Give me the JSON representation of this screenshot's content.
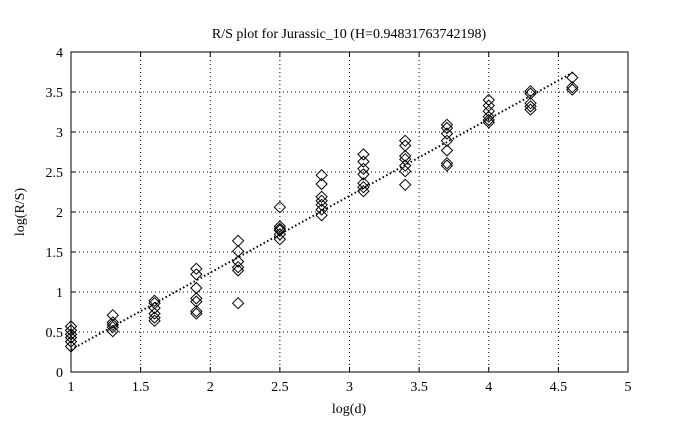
{
  "chart_data": {
    "type": "scatter",
    "title": "R/S plot for Jurassic_10 (H=0.94831763742198)",
    "xlabel": "log(d)",
    "ylabel": "log(R/S)",
    "xlim": [
      1,
      5
    ],
    "ylim": [
      0,
      4
    ],
    "x_ticks": [
      "1",
      "1.5",
      "2",
      "2.5",
      "3",
      "3.5",
      "4",
      "4.5",
      "5"
    ],
    "y_ticks": [
      "0",
      "0.5",
      "1",
      "1.5",
      "2",
      "2.5",
      "3",
      "3.5",
      "4"
    ],
    "grid": true,
    "grid_style": "dotted",
    "marker": "diamond",
    "series": [
      {
        "points": [
          [
            1.0,
            0.32
          ],
          [
            1.0,
            0.38
          ],
          [
            1.0,
            0.43
          ],
          [
            1.0,
            0.47
          ],
          [
            1.0,
            0.52
          ],
          [
            1.0,
            0.57
          ],
          [
            1.3,
            0.51
          ],
          [
            1.3,
            0.56
          ],
          [
            1.3,
            0.59
          ],
          [
            1.3,
            0.62
          ],
          [
            1.3,
            0.71
          ],
          [
            1.6,
            0.64
          ],
          [
            1.6,
            0.68
          ],
          [
            1.6,
            0.73
          ],
          [
            1.6,
            0.8
          ],
          [
            1.6,
            0.86
          ],
          [
            1.6,
            0.89
          ],
          [
            1.9,
            0.73
          ],
          [
            1.9,
            0.76
          ],
          [
            1.9,
            0.88
          ],
          [
            1.9,
            0.92
          ],
          [
            1.9,
            1.05
          ],
          [
            1.9,
            1.22
          ],
          [
            1.9,
            1.29
          ],
          [
            2.2,
            0.86
          ],
          [
            2.2,
            1.27
          ],
          [
            2.2,
            1.31
          ],
          [
            2.2,
            1.38
          ],
          [
            2.2,
            1.51
          ],
          [
            2.2,
            1.64
          ],
          [
            2.5,
            1.66
          ],
          [
            2.5,
            1.72
          ],
          [
            2.5,
            1.77
          ],
          [
            2.5,
            1.79
          ],
          [
            2.5,
            1.82
          ],
          [
            2.5,
            2.06
          ],
          [
            2.8,
            1.96
          ],
          [
            2.8,
            2.03
          ],
          [
            2.8,
            2.09
          ],
          [
            2.8,
            2.14
          ],
          [
            2.8,
            2.19
          ],
          [
            2.8,
            2.35
          ],
          [
            2.8,
            2.46
          ],
          [
            3.1,
            2.26
          ],
          [
            3.1,
            2.31
          ],
          [
            3.1,
            2.36
          ],
          [
            3.1,
            2.47
          ],
          [
            3.1,
            2.54
          ],
          [
            3.1,
            2.63
          ],
          [
            3.1,
            2.72
          ],
          [
            3.4,
            2.34
          ],
          [
            3.4,
            2.51
          ],
          [
            3.4,
            2.58
          ],
          [
            3.4,
            2.66
          ],
          [
            3.4,
            2.7
          ],
          [
            3.4,
            2.83
          ],
          [
            3.4,
            2.89
          ],
          [
            3.7,
            2.58
          ],
          [
            3.7,
            2.61
          ],
          [
            3.7,
            2.77
          ],
          [
            3.7,
            2.89
          ],
          [
            3.7,
            2.98
          ],
          [
            3.7,
            3.05
          ],
          [
            3.7,
            3.09
          ],
          [
            4.0,
            3.12
          ],
          [
            4.0,
            3.15
          ],
          [
            4.0,
            3.19
          ],
          [
            4.0,
            3.26
          ],
          [
            4.0,
            3.33
          ],
          [
            4.0,
            3.4
          ],
          [
            4.3,
            3.28
          ],
          [
            4.3,
            3.32
          ],
          [
            4.3,
            3.36
          ],
          [
            4.3,
            3.48
          ],
          [
            4.3,
            3.51
          ],
          [
            4.6,
            3.53
          ],
          [
            4.6,
            3.56
          ],
          [
            4.6,
            3.68
          ]
        ]
      }
    ],
    "fit_line": {
      "style": "dotted",
      "x": [
        1.0,
        4.6
      ],
      "y": [
        0.28,
        3.74
      ]
    }
  }
}
